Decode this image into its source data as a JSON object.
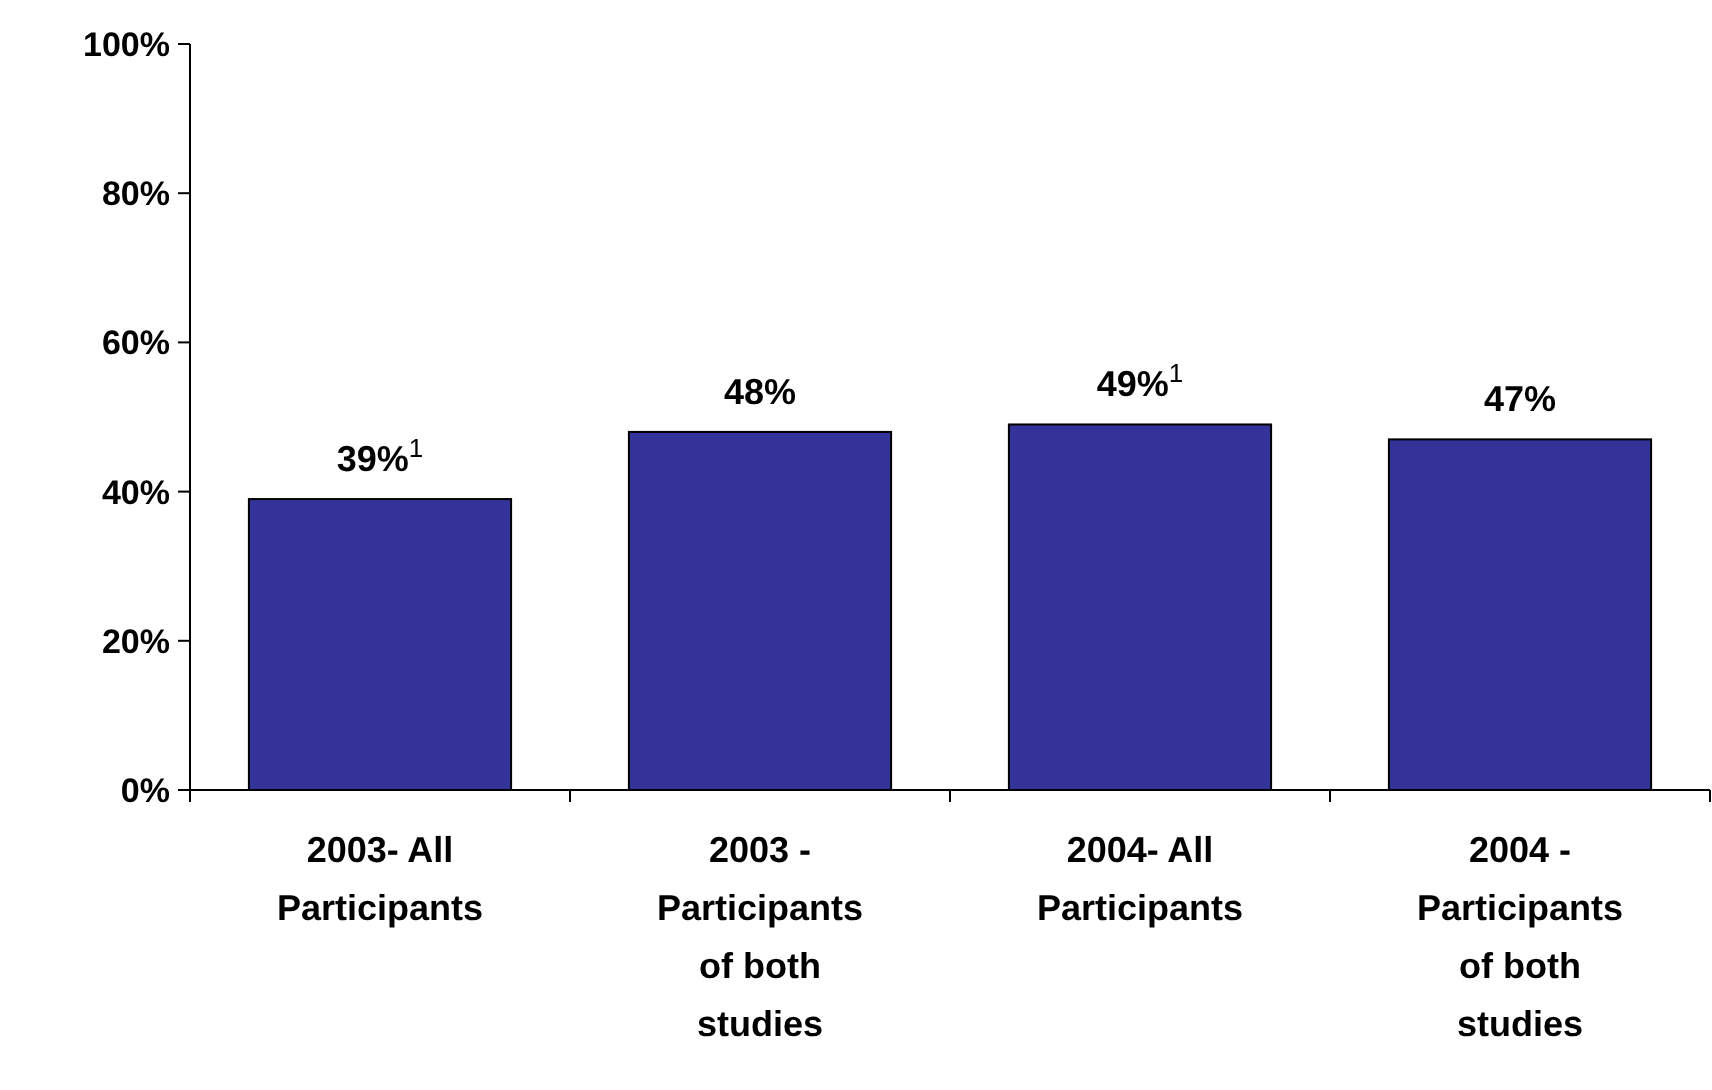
{
  "chart_data": {
    "type": "bar",
    "categories": [
      "2003- All Participants",
      "2003 - Participants of both studies",
      "2004- All Participants",
      "2004 - Participants of both studies"
    ],
    "values": [
      39,
      48,
      49,
      47
    ],
    "value_labels": [
      "39%$^{1}$",
      "48%",
      "49%$^{1}$",
      "47%"
    ],
    "color": "#333399",
    "ylim": [
      0,
      100
    ],
    "yticks": [
      {
        "value": 0,
        "label": "0%"
      },
      {
        "value": 20,
        "label": "20%"
      },
      {
        "value": 40,
        "label": "40%"
      },
      {
        "value": 60,
        "label": "60%"
      },
      {
        "value": 80,
        "label": "80%"
      },
      {
        "value": 100,
        "label": "100%"
      }
    ],
    "grid": false
  }
}
